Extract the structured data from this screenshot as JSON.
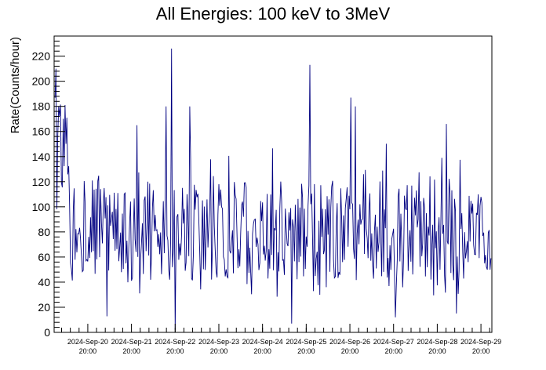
{
  "chart_data": {
    "type": "line",
    "title": "All Energies:  100 keV to 3MeV",
    "xlabel": "",
    "ylabel": "Rate(Counts/hour)",
    "ylim": [
      0,
      236
    ],
    "yticks": [
      0,
      20,
      40,
      60,
      80,
      100,
      120,
      140,
      160,
      180,
      200,
      220
    ],
    "xlim_hours": [
      -18.5,
      222
    ],
    "x_ticks": [
      {
        "date": "2024-Sep-20",
        "time": "20:00"
      },
      {
        "date": "2024-Sep-21",
        "time": "20:00"
      },
      {
        "date": "2024-Sep-22",
        "time": "20:00"
      },
      {
        "date": "2024-Sep-23",
        "time": "20:00"
      },
      {
        "date": "2024-Sep-24",
        "time": "20:00"
      },
      {
        "date": "2024-Sep-25",
        "time": "20:00"
      },
      {
        "date": "2024-Sep-26",
        "time": "20:00"
      },
      {
        "date": "2024-Sep-27",
        "time": "20:00"
      },
      {
        "date": "2024-Sep-28",
        "time": "20:00"
      },
      {
        "date": "2024-Sep-29",
        "time": "20:00"
      }
    ],
    "grid": false,
    "legend": "none",
    "series": [
      {
        "color": "#000080",
        "summary": {
          "typical_range": [
            40,
            120
          ],
          "mean": 80
        },
        "peaks": [
          {
            "x": "2024-Sep-20 02:30",
            "y": 210
          },
          {
            "x": "2024-Sep-20 04:00",
            "y": 180
          },
          {
            "x": "2024-Sep-22 15:00",
            "y": 180
          },
          {
            "x": "2024-Sep-22 18:00",
            "y": 226
          },
          {
            "x": "2024-Sep-23 04:00",
            "y": 180
          },
          {
            "x": "2024-Sep-21 23:00",
            "y": 165
          },
          {
            "x": "2024-Sep-25 22:00",
            "y": 213
          },
          {
            "x": "2024-Sep-26 20:30",
            "y": 187
          },
          {
            "x": "2024-Sep-26 23:00",
            "y": 180
          },
          {
            "x": "2024-Sep-29 01:00",
            "y": 166
          }
        ],
        "dips": [
          {
            "x": "2024-Sep-22 20:00",
            "y": 2
          },
          {
            "x": "2024-Sep-25 12:00",
            "y": 7
          },
          {
            "x": "2024-Sep-27 21:00",
            "y": 12
          }
        ]
      }
    ]
  }
}
